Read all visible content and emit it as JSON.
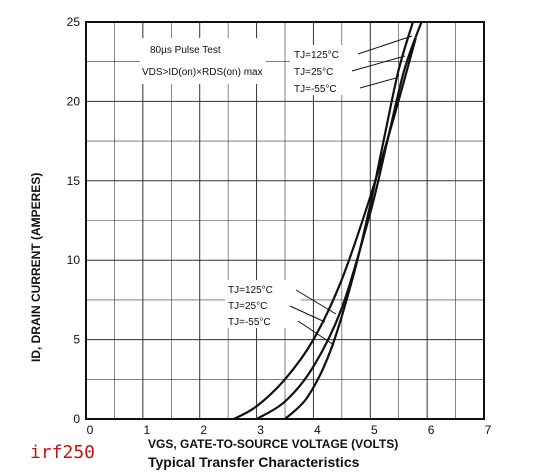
{
  "part_label": "irf250",
  "chart_data": {
    "type": "line",
    "title": "Typical Transfer Characteristics",
    "xlabel": "VGS, GATE-TO-SOURCE VOLTAGE (VOLTS)",
    "ylabel": "ID, DRAIN CURRENT (AMPERES)",
    "xlim": [
      0,
      7
    ],
    "ylim": [
      0,
      25
    ],
    "xticks": [
      "0",
      "1",
      "2",
      "3",
      "4",
      "5",
      "6",
      "7"
    ],
    "yticks": [
      "0",
      "5",
      "10",
      "15",
      "20",
      "25"
    ],
    "grid": true,
    "annotations": [
      "80µs Pulse Test",
      "VDS>ID(on)×RDS(on) max"
    ],
    "legend_upper": [
      "TJ=125°C",
      "TJ=25°C",
      "TJ=-55°C"
    ],
    "legend_lower": [
      "TJ=125°C",
      "TJ=25°C",
      "TJ=-55°C"
    ],
    "series": [
      {
        "name": "TJ=125°C",
        "x": [
          2.6,
          3.0,
          3.5,
          4.0,
          4.5,
          5.0,
          5.4,
          5.8
        ],
        "y": [
          0,
          0.8,
          2.5,
          5.0,
          8.8,
          14.0,
          18.8,
          24.0
        ]
      },
      {
        "name": "TJ=25°C",
        "x": [
          3.0,
          3.5,
          4.0,
          4.5,
          5.0,
          5.3,
          5.6,
          5.9
        ],
        "y": [
          0,
          1.1,
          3.3,
          7.0,
          13.0,
          17.5,
          22.0,
          25.0
        ]
      },
      {
        "name": "TJ=-55°C",
        "x": [
          3.5,
          3.9,
          4.3,
          4.7,
          5.0,
          5.25,
          5.5,
          5.75
        ],
        "y": [
          0,
          1.4,
          4.3,
          9.0,
          13.5,
          17.8,
          22.0,
          25.0
        ]
      }
    ]
  }
}
